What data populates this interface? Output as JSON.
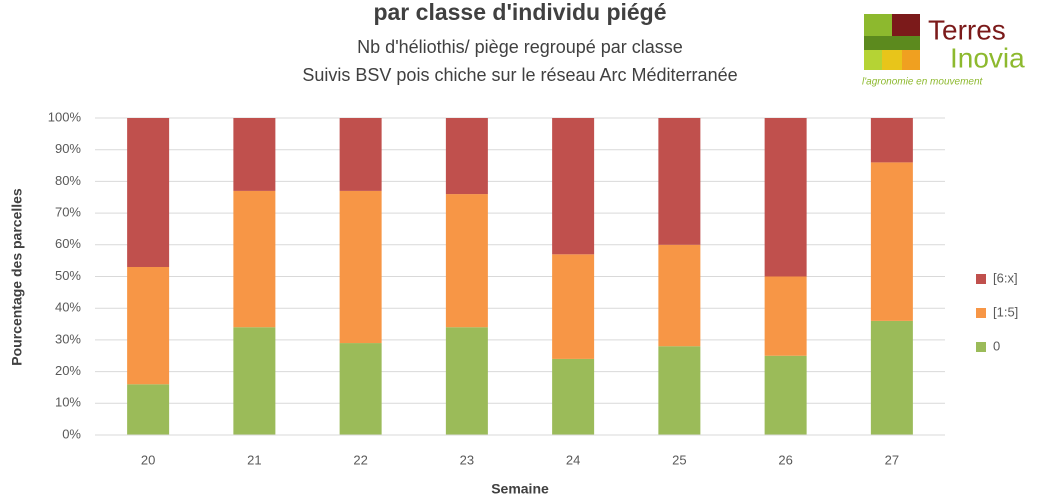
{
  "chart_data": {
    "type": "stacked-bar",
    "title": "par classe d'individu piégé",
    "subtitle": [
      "Nb d'héliothis/ piège regroupé par classe",
      "Suivis BSV pois chiche sur le réseau Arc Méditerranée"
    ],
    "x_label": "Semaine",
    "y_label": "Pourcentage des parcelles",
    "categories": [
      "20",
      "21",
      "22",
      "23",
      "24",
      "25",
      "26",
      "27"
    ],
    "series": [
      {
        "name": "0",
        "color": "#9bbb59",
        "values": [
          16,
          34,
          29,
          34,
          24,
          28,
          25,
          36
        ]
      },
      {
        "name": "[1:5]",
        "color": "#f79646",
        "values": [
          37,
          43,
          48,
          42,
          33,
          32,
          25,
          50
        ]
      },
      {
        "name": "[6:x]",
        "color": "#c0504d",
        "values": [
          47,
          23,
          23,
          24,
          43,
          40,
          50,
          14
        ]
      }
    ],
    "ylim": [
      0,
      100
    ],
    "yticks": [
      {
        "value": 0,
        "label": "0%"
      },
      {
        "value": 10,
        "label": "10%"
      },
      {
        "value": 20,
        "label": "20%"
      },
      {
        "value": 30,
        "label": "30%"
      },
      {
        "value": 40,
        "label": "40%"
      },
      {
        "value": 50,
        "label": "50%"
      },
      {
        "value": 60,
        "label": "60%"
      },
      {
        "value": 70,
        "label": "70%"
      },
      {
        "value": 80,
        "label": "80%"
      },
      {
        "value": 90,
        "label": "90%"
      },
      {
        "value": 100,
        "label": "100%"
      }
    ],
    "grid": true,
    "legend": "right"
  },
  "logo": {
    "line1": "Terres",
    "line2": "Inovia",
    "tagline": "l'agronomie en mouvement"
  }
}
